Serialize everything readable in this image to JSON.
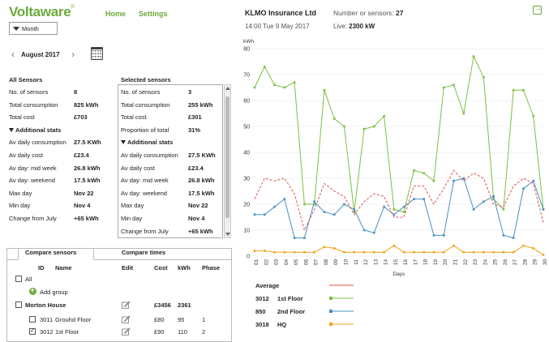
{
  "header": {
    "logo": "Voltaware",
    "logo_mark": "®",
    "nav": {
      "home": "Home",
      "settings": "Settings"
    },
    "company": "KLMO Insurance Ltd",
    "datetime": "14:00 Tue 9 May 2017",
    "sensors_label": "Number or sensors:",
    "sensors_value": "27",
    "live_label": "Live:",
    "live_value": "2300 kW",
    "logout_icon": "logout-icon"
  },
  "period": {
    "selected": "Month"
  },
  "month_nav": {
    "label": "August 2017",
    "prev": "‹",
    "next": "›"
  },
  "all_sensors": {
    "title": "All Sensors",
    "rows": [
      {
        "label": "No. of sensors",
        "value": "8"
      },
      {
        "label": "Total consumption",
        "value": "825 kWh"
      },
      {
        "label": "Total cost",
        "value": "£703"
      }
    ],
    "additional_title": "Additional stats",
    "additional": [
      {
        "label": "Av daily consumption",
        "value": "27.5 KWh"
      },
      {
        "label": "Av daily cost",
        "value": "£23.4"
      },
      {
        "label": "Av day: mid week",
        "value": "26.8 kWh"
      },
      {
        "label": "Av day: weekend",
        "value": "17.5 kWh"
      },
      {
        "label": "Max day",
        "value": "Nov 22"
      },
      {
        "label": "Min day",
        "value": "Nov 4"
      },
      {
        "label": "Change from July",
        "value": "+65 kWh"
      }
    ]
  },
  "selected_sensors": {
    "title": "Selected sensors",
    "rows": [
      {
        "label": "No. of sensors",
        "value": "3"
      },
      {
        "label": "Total consumption",
        "value": "255 kWh"
      },
      {
        "label": "Total cost",
        "value": "£301"
      },
      {
        "label": "Proportion of total",
        "value": "31%"
      }
    ],
    "additional_title": "Additional stats",
    "additional": [
      {
        "label": "Av daily consumption",
        "value": "27.5 KWh"
      },
      {
        "label": "Av daily cost",
        "value": "£23.4"
      },
      {
        "label": "Av day: mid week",
        "value": "26.8 kWh"
      },
      {
        "label": "Av day: weekend",
        "value": "17.5 kWh"
      },
      {
        "label": "Max day",
        "value": "Nov 22"
      },
      {
        "label": "Min day",
        "value": "Nov 4"
      },
      {
        "label": "Change from July",
        "value": "+65 kWh"
      }
    ]
  },
  "compare": {
    "tabs": [
      "Compare sensors",
      "Compare times"
    ],
    "columns": [
      "ID",
      "Name",
      "Edit",
      "Cost",
      "kWh",
      "Phase"
    ],
    "all_label": "All",
    "add_group": "Add group",
    "rows": [
      {
        "id": "",
        "name": "Morton House",
        "cost": "£3456",
        "kwh": "2361",
        "phase": "",
        "checked": false,
        "bold": true
      },
      {
        "id": "3011",
        "name": "Grouhd Floor",
        "cost": "£80",
        "kwh": "95",
        "phase": "1",
        "checked": false,
        "bold": false
      },
      {
        "id": "3012",
        "name": "1st Floor",
        "cost": "£90",
        "kwh": "110",
        "phase": "2",
        "checked": true,
        "bold": false
      }
    ]
  },
  "colors": {
    "brand": "#6aab3a",
    "green_series": "#7ac143",
    "blue_series": "#4a90c2",
    "orange_series": "#f2a31b",
    "average": "#d9534f"
  },
  "chart_data": {
    "type": "line",
    "ylabel": "kWh",
    "xlabel": "Days",
    "ylim": [
      0,
      80
    ],
    "yticks": [
      0,
      10,
      20,
      30,
      40,
      50,
      60,
      70,
      80
    ],
    "x": [
      "01",
      "02",
      "03",
      "04",
      "05",
      "06",
      "07",
      "08",
      "09",
      "10",
      "11",
      "12",
      "13",
      "14",
      "15",
      "16",
      "17",
      "18",
      "19",
      "20",
      "21",
      "22",
      "23",
      "24",
      "25",
      "26",
      "27",
      "28",
      "29",
      "30"
    ],
    "series": [
      {
        "name": "1st Floor",
        "id": "3012",
        "color": "#7ac143",
        "marker": "square",
        "values": [
          65,
          73,
          66,
          65,
          67,
          20,
          20,
          64,
          53,
          50,
          17,
          49,
          50,
          54,
          18,
          17,
          33,
          32,
          29,
          65,
          66,
          55,
          77,
          69,
          22,
          18,
          64,
          64,
          54,
          18
        ]
      },
      {
        "name": "2nd Floor",
        "id": "850",
        "color": "#4a90c2",
        "marker": "square",
        "values": [
          16,
          16,
          19,
          22,
          7,
          7,
          21,
          17,
          16,
          20,
          18,
          10,
          9,
          19,
          16,
          19,
          22,
          22,
          8,
          8,
          29,
          30,
          18,
          21,
          23,
          8,
          7,
          26,
          29,
          18
        ]
      },
      {
        "name": "HQ",
        "id": "3018",
        "color": "#f2a31b",
        "marker": "square",
        "values": [
          2,
          2,
          1.5,
          1.5,
          1.5,
          1.5,
          1.5,
          3.5,
          3,
          1.5,
          1.5,
          1.5,
          1.5,
          1.5,
          4,
          1.5,
          1.5,
          1.5,
          1.5,
          1.5,
          4,
          1.5,
          1.5,
          1.5,
          1.5,
          1.5,
          1.5,
          4,
          3,
          0.5
        ]
      },
      {
        "name": "Average",
        "color": "#d9534f",
        "dashed": true,
        "values": [
          22,
          30,
          29,
          30,
          24,
          10,
          18,
          28,
          25,
          23,
          16,
          21,
          24,
          23,
          15,
          15,
          27,
          27,
          20,
          26,
          33,
          29,
          32,
          30,
          20,
          19,
          27,
          30,
          28,
          13
        ]
      }
    ],
    "legend": [
      {
        "label": "Average",
        "id": ""
      },
      {
        "id": "3012",
        "label": "1st Floor"
      },
      {
        "id": "850",
        "label": "2nd Floor"
      },
      {
        "id": "3018",
        "label": "HQ"
      }
    ]
  }
}
